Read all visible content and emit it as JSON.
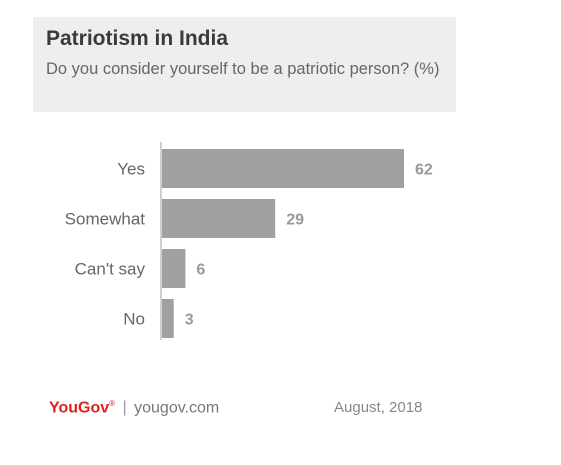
{
  "title": "Patriotism in India",
  "subtitle": "Do you consider yourself to be a patriotic person? (%)",
  "footer": {
    "brand": "YouGov",
    "brand_mark": "®",
    "separator": "|",
    "site": "yougov.com",
    "date": "August, 2018"
  },
  "colors": {
    "bar": "#a0a0a0",
    "axis": "#c0c0c0",
    "brand": "#e2211c"
  },
  "chart_data": {
    "type": "bar",
    "orientation": "horizontal",
    "categories": [
      "Yes",
      "Somewhat",
      "Can't say",
      "No"
    ],
    "values": [
      62,
      29,
      6,
      3
    ],
    "xlim": [
      0,
      62
    ],
    "grid": false,
    "legend": "none"
  }
}
